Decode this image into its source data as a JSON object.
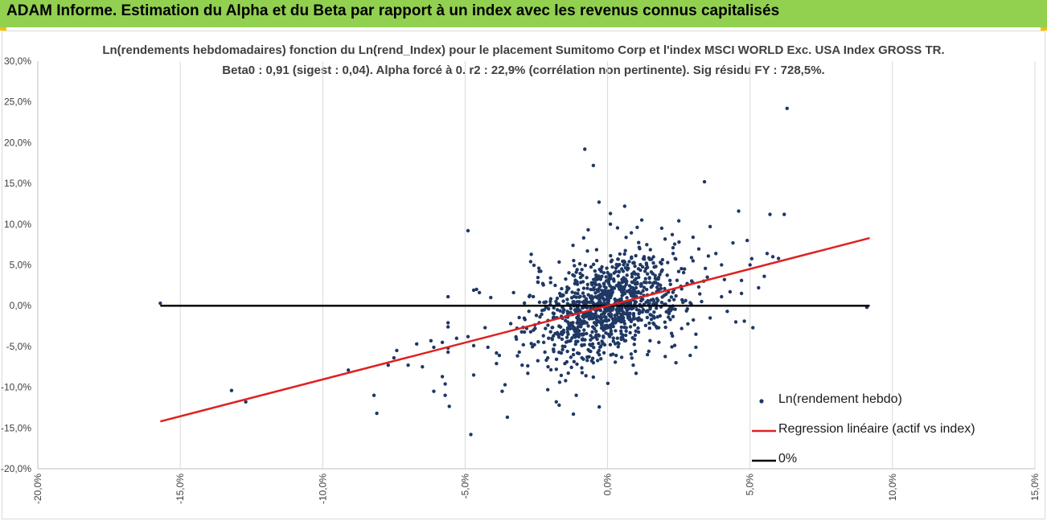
{
  "header": {
    "title": "ADAM Informe. Estimation du Alpha et du Beta par rapport à un index avec les revenus connus capitalisés",
    "background_color": "#92d050",
    "corner_color": "#f2c200"
  },
  "chart_data": {
    "type": "scatter",
    "title": "Ln(rendements hebdomadaires) fonction du Ln(rend_Index) pour le placement Sumitomo Corp et l'index MSCI WORLD Exc. USA Index GROSS TR.",
    "subtitle": "Beta0 : 0,91  (sigest : 0,04).  Alpha forcé à 0. r2 : 22,9% (corrélation non pertinente). Sig résidu FY : 728,5%.",
    "xlabel": "",
    "ylabel": "",
    "xlim": [
      -0.2,
      0.15
    ],
    "ylim": [
      -0.2,
      0.3
    ],
    "x_ticks": [
      -0.2,
      -0.15,
      -0.1,
      -0.05,
      0.0,
      0.05,
      0.1,
      0.15
    ],
    "x_tick_labels": [
      "-20,0%",
      "-15,0%",
      "-10,0%",
      "-5,0%",
      "0,0%",
      "5,0%",
      "10,0%",
      "15,0%"
    ],
    "y_ticks": [
      -0.2,
      -0.15,
      -0.1,
      -0.05,
      0.0,
      0.05,
      0.1,
      0.15,
      0.2,
      0.25,
      0.3
    ],
    "y_tick_labels": [
      "-20,0%",
      "-15,0%",
      "-10,0%",
      "-5,0%",
      "0,0%",
      "5,0%",
      "10,0%",
      "15,0%",
      "20,0%",
      "25,0%",
      "30,0%"
    ],
    "vertical_grid": true,
    "horizontal_grid": false,
    "legend_position": "bottom-right",
    "series": [
      {
        "name": "Ln(rendement hebdo)",
        "kind": "scatter",
        "color": "#1f3864",
        "points": [
          [
            -0.157,
            0.003
          ],
          [
            -0.132,
            -0.104
          ],
          [
            -0.127,
            -0.118
          ],
          [
            -0.091,
            -0.079
          ],
          [
            -0.082,
            -0.11
          ],
          [
            -0.081,
            -0.132
          ],
          [
            -0.077,
            -0.073
          ],
          [
            -0.075,
            -0.064
          ],
          [
            -0.074,
            -0.055
          ],
          [
            -0.07,
            -0.073
          ],
          [
            -0.067,
            -0.047
          ],
          [
            -0.065,
            -0.075
          ],
          [
            -0.062,
            -0.043
          ],
          [
            -0.061,
            -0.051
          ],
          [
            -0.061,
            -0.105
          ],
          [
            -0.058,
            -0.087
          ],
          [
            -0.057,
            -0.11
          ],
          [
            -0.058,
            -0.045
          ],
          [
            -0.056,
            -0.052
          ],
          [
            -0.056,
            -0.057
          ],
          [
            -0.057,
            -0.096
          ],
          [
            -0.056,
            -0.026
          ],
          [
            -0.056,
            -0.021
          ],
          [
            -0.056,
            0.011
          ],
          [
            -0.049,
            0.092
          ],
          [
            -0.048,
            -0.158
          ],
          [
            -0.047,
            0.019
          ],
          [
            -0.045,
            0.016
          ],
          [
            -0.047,
            -0.049
          ],
          [
            -0.047,
            -0.085
          ],
          [
            -0.043,
            -0.027
          ],
          [
            -0.042,
            -0.051
          ],
          [
            -0.041,
            0.01
          ],
          [
            -0.039,
            -0.058
          ],
          [
            -0.039,
            -0.071
          ],
          [
            -0.038,
            -0.061
          ],
          [
            -0.037,
            -0.105
          ],
          [
            -0.036,
            -0.097
          ],
          [
            -0.034,
            -0.022
          ],
          [
            -0.033,
            0.016
          ],
          [
            -0.032,
            -0.041
          ],
          [
            -0.031,
            -0.057
          ],
          [
            -0.03,
            -0.073
          ],
          [
            -0.029,
            -0.017
          ],
          [
            -0.028,
            -0.083
          ],
          [
            -0.027,
            -0.032
          ],
          [
            -0.027,
            0.054
          ],
          [
            -0.026,
            -0.03
          ],
          [
            -0.025,
            -0.012
          ],
          [
            -0.024,
            -0.021
          ],
          [
            -0.024,
            0.042
          ],
          [
            -0.022,
            -0.057
          ],
          [
            -0.021,
            -0.064
          ],
          [
            -0.02,
            -0.032
          ],
          [
            -0.019,
            -0.016
          ],
          [
            -0.019,
            -0.037
          ],
          [
            -0.018,
            -0.078
          ],
          [
            -0.017,
            -0.025
          ],
          [
            -0.016,
            0.012
          ],
          [
            -0.016,
            -0.041
          ],
          [
            -0.015,
            -0.05
          ],
          [
            -0.015,
            -0.071
          ],
          [
            -0.014,
            -0.014
          ],
          [
            -0.014,
            -0.02
          ],
          [
            -0.013,
            -0.043
          ],
          [
            -0.012,
            -0.054
          ],
          [
            -0.012,
            -0.06
          ],
          [
            -0.011,
            0.041
          ],
          [
            -0.01,
            -0.022
          ],
          [
            -0.01,
            -0.031
          ],
          [
            -0.009,
            -0.049
          ],
          [
            -0.009,
            -0.064
          ],
          [
            -0.008,
            -0.021
          ],
          [
            -0.007,
            0.026
          ],
          [
            -0.007,
            -0.008
          ],
          [
            -0.006,
            -0.042
          ],
          [
            -0.005,
            -0.07
          ],
          [
            -0.004,
            -0.013
          ],
          [
            -0.004,
            -0.036
          ],
          [
            -0.003,
            -0.055
          ],
          [
            -0.002,
            0.036
          ],
          [
            -0.001,
            -0.048
          ],
          [
            0.0,
            -0.027
          ],
          [
            0.001,
            0.01
          ],
          [
            0.002,
            -0.021
          ],
          [
            0.003,
            -0.061
          ],
          [
            0.004,
            0.028
          ],
          [
            0.005,
            -0.003
          ],
          [
            0.006,
            -0.043
          ],
          [
            0.007,
            0.05
          ],
          [
            0.008,
            0.015
          ],
          [
            0.009,
            -0.073
          ],
          [
            0.01,
            0.022
          ],
          [
            0.011,
            -0.015
          ],
          [
            0.012,
            -0.001
          ],
          [
            0.014,
            0.039
          ],
          [
            0.015,
            -0.011
          ],
          [
            0.016,
            0.002
          ],
          [
            0.017,
            0.028
          ],
          [
            0.018,
            -0.045
          ],
          [
            0.019,
            0.004
          ],
          [
            0.02,
            0.021
          ],
          [
            0.022,
            -0.017
          ],
          [
            0.023,
            0.064
          ],
          [
            0.024,
            0.012
          ],
          [
            0.026,
            -0.028
          ],
          [
            0.027,
            0.045
          ],
          [
            0.028,
            -0.004
          ],
          [
            0.03,
            0.055
          ],
          [
            0.031,
            -0.035
          ],
          [
            0.032,
            0.023
          ],
          [
            0.033,
            0.005
          ],
          [
            0.034,
            0.152
          ],
          [
            0.035,
            0.035
          ],
          [
            0.036,
            -0.015
          ],
          [
            0.038,
            0.064
          ],
          [
            0.04,
            0.011
          ],
          [
            0.042,
            -0.007
          ],
          [
            0.044,
            0.077
          ],
          [
            0.045,
            -0.02
          ],
          [
            0.046,
            0.116
          ],
          [
            0.047,
            0.031
          ],
          [
            0.048,
            -0.019
          ],
          [
            0.049,
            0.08
          ],
          [
            0.05,
            0.05
          ],
          [
            0.051,
            -0.027
          ],
          [
            0.053,
            0.022
          ],
          [
            0.055,
            0.036
          ],
          [
            0.056,
            0.064
          ],
          [
            0.057,
            0.112
          ],
          [
            0.058,
            0.06
          ],
          [
            0.06,
            0.058
          ],
          [
            0.062,
            0.112
          ],
          [
            0.063,
            0.242
          ],
          [
            0.091,
            -0.002
          ],
          [
            -0.008,
            0.192
          ],
          [
            -0.005,
            0.172
          ],
          [
            -0.003,
            0.127
          ],
          [
            0.001,
            0.1
          ],
          [
            0.001,
            0.113
          ],
          [
            0.006,
            0.122
          ],
          [
            0.012,
            0.105
          ],
          [
            0.019,
            0.095
          ],
          [
            0.025,
            0.104
          ],
          [
            0.03,
            0.084
          ],
          [
            0.036,
            0.097
          ],
          [
            0.04,
            0.05
          ],
          [
            0.043,
            0.017
          ],
          [
            0.047,
            0.015
          ],
          [
            0.031,
            -0.051
          ],
          [
            0.029,
            -0.061
          ],
          [
            0.024,
            -0.07
          ],
          [
            0.014,
            -0.06
          ],
          [
            0.01,
            -0.083
          ],
          [
            -0.012,
            -0.133
          ],
          [
            -0.018,
            -0.118
          ],
          [
            -0.021,
            -0.103
          ],
          [
            -0.011,
            -0.11
          ],
          [
            -0.017,
            -0.122
          ],
          [
            -0.046,
            0.02
          ],
          [
            -0.053,
            -0.04
          ],
          [
            -0.049,
            -0.038
          ]
        ]
      },
      {
        "name": "Regression linéaire (actif vs index)",
        "kind": "line",
        "color": "#e02020",
        "points": [
          [
            -0.157,
            -0.142
          ],
          [
            0.092,
            0.083
          ]
        ]
      },
      {
        "name": "0%",
        "kind": "line",
        "color": "#000000",
        "points": [
          [
            -0.157,
            0.0
          ],
          [
            0.092,
            0.0
          ]
        ]
      }
    ],
    "cloud": {
      "description_count": 1000,
      "center": [
        0.0,
        0.0
      ],
      "sd_x": 0.013,
      "sd_y": 0.03,
      "beta": 0.91,
      "seed": 7
    }
  }
}
